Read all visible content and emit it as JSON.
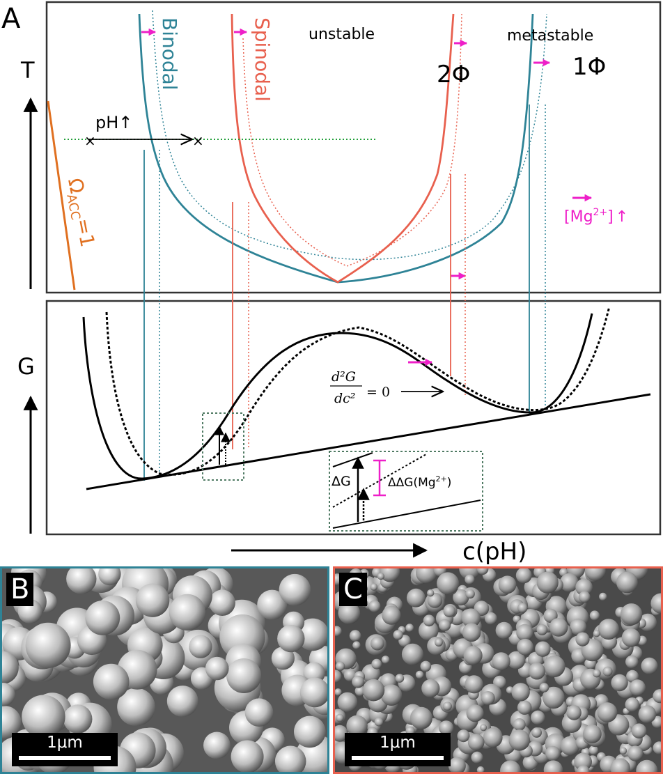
{
  "colors": {
    "binodal": "#2e8396",
    "spinodal": "#e8604e",
    "omega": "#e07020",
    "magenta": "#ee1fc8",
    "green": "#22a03a",
    "box": "#4f7a63",
    "black": "#000000",
    "frame": "#333333"
  },
  "panels": {
    "a": {
      "label": "A",
      "labels": {
        "t_axis": "T",
        "g_axis": "G",
        "x_axis": "c(pH)",
        "binodal": "Binodal",
        "spinodal": "Spinodal",
        "unstable": "unstable",
        "metastable": "metastable",
        "two_phase": "2Φ",
        "one_phase": "1Φ",
        "ph_up": "pH↑",
        "omega": "Ω",
        "omega_sub": "ACC",
        "omega_eq": "=1",
        "mg_text": "[Mg",
        "mg_sup": "2+",
        "mg_close": "]",
        "mg_arrow": "↑",
        "d2g_num": "d²G",
        "d2g_den": "dc²",
        "d2g_eq": "= 0",
        "delta_g": "ΔG",
        "ddg": "ΔΔG(Mg",
        "ddg_sup": "2+",
        "ddg_close": ")"
      }
    },
    "b": {
      "label": "B",
      "scale_bar": "1μm"
    },
    "c": {
      "label": "C",
      "scale_bar": "1μm"
    }
  }
}
